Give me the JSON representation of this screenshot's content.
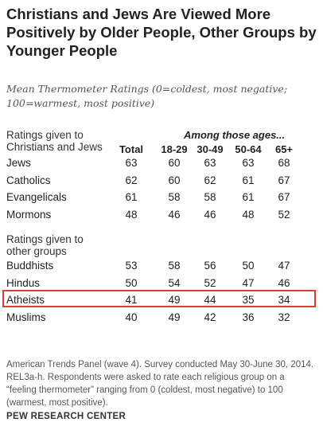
{
  "chart_data": {
    "type": "table",
    "title": "Christians and Jews Are Viewed More Positively by Older People, Other Groups by Younger People",
    "subtitle": "Mean Thermometer Ratings (0=coldest, most negative; 100=warmest, most positive)",
    "spanner": "Among those ages...",
    "columns": [
      "Total",
      "18-29",
      "30-49",
      "50-64",
      "65+"
    ],
    "groups": [
      {
        "label": "Ratings given to Christians and Jews",
        "rows": [
          {
            "name": "Jews",
            "values": [
              63,
              60,
              63,
              63,
              68
            ]
          },
          {
            "name": "Catholics",
            "values": [
              62,
              60,
              62,
              61,
              67
            ]
          },
          {
            "name": "Evangelicals",
            "values": [
              61,
              58,
              58,
              61,
              67
            ]
          },
          {
            "name": "Mormons",
            "values": [
              48,
              46,
              46,
              48,
              52
            ]
          }
        ]
      },
      {
        "label": "Ratings given to other groups",
        "rows": [
          {
            "name": "Buddhists",
            "values": [
              53,
              58,
              56,
              50,
              47
            ]
          },
          {
            "name": "Hindus",
            "values": [
              50,
              54,
              52,
              47,
              46
            ]
          },
          {
            "name": "Atheists",
            "values": [
              41,
              49,
              44,
              35,
              34
            ]
          },
          {
            "name": "Muslims",
            "values": [
              40,
              49,
              42,
              36,
              32
            ]
          }
        ]
      }
    ],
    "highlighted_row": "Atheists",
    "highlight_color": "#e23b35",
    "note": "American Trends Panel (wave 4). Survey conducted May 30-June 30, 2014. REL3a-h. Respondents were asked to rate each religious group on a “feeling thermometer” ranging from 0 (coldest, most negative) to 100 (warmest, most positive).",
    "source": "PEW RESEARCH CENTER"
  }
}
